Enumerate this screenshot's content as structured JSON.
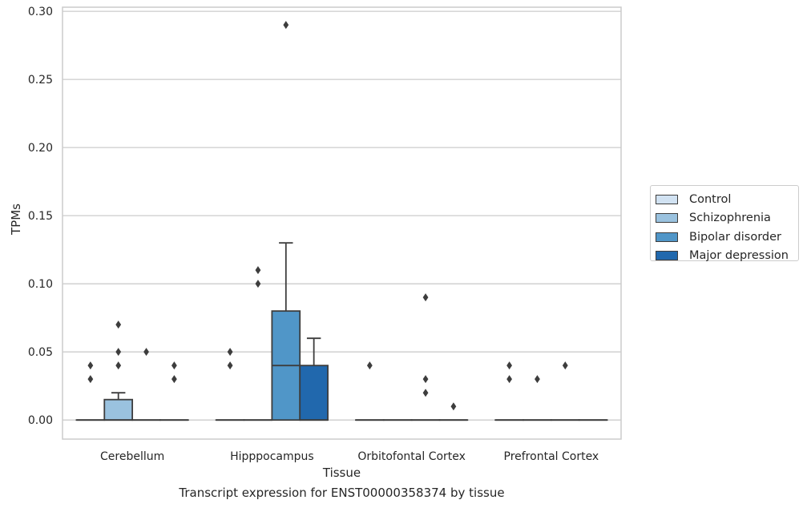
{
  "chart_data": {
    "type": "box",
    "xlabel": "Tissue",
    "ylabel": "TPMs",
    "ylim": [
      -0.014,
      0.303
    ],
    "yticks": [
      0.0,
      0.05,
      0.1,
      0.15,
      0.2,
      0.25,
      0.3
    ],
    "ytick_labels": [
      "0.00",
      "0.05",
      "0.10",
      "0.15",
      "0.20",
      "0.25",
      "0.30"
    ],
    "grid": true,
    "legend_position": "right",
    "categories": [
      "Cerebellum",
      "Hipppocampus",
      "Orbitofontal Cortex",
      "Prefrontal Cortex"
    ],
    "series": [
      {
        "name": "Control",
        "color": "#d1e2f2",
        "boxes": [
          {
            "q1": 0,
            "median": 0,
            "q3": 0,
            "whislo": 0,
            "whishi": 0,
            "fliers": [
              0.03,
              0.04
            ]
          },
          {
            "q1": 0,
            "median": 0,
            "q3": 0,
            "whislo": 0,
            "whishi": 0,
            "fliers": [
              0.04,
              0.05
            ]
          },
          {
            "q1": 0,
            "median": 0,
            "q3": 0,
            "whislo": 0,
            "whishi": 0,
            "fliers": [
              0.04
            ]
          },
          {
            "q1": 0,
            "median": 0,
            "q3": 0,
            "whislo": 0,
            "whishi": 0,
            "fliers": [
              0.03,
              0.04
            ]
          }
        ]
      },
      {
        "name": "Schizophrenia",
        "color": "#9ac2df",
        "boxes": [
          {
            "q1": 0,
            "median": 0,
            "q3": 0.015,
            "whislo": 0,
            "whishi": 0.02,
            "fliers": [
              0.04,
              0.05,
              0.07
            ]
          },
          {
            "q1": 0,
            "median": 0,
            "q3": 0,
            "whislo": 0,
            "whishi": 0,
            "fliers": [
              0.1,
              0.11
            ]
          },
          {
            "q1": 0,
            "median": 0,
            "q3": 0,
            "whislo": 0,
            "whishi": 0,
            "fliers": []
          },
          {
            "q1": 0,
            "median": 0,
            "q3": 0,
            "whislo": 0,
            "whishi": 0,
            "fliers": [
              0.03
            ]
          }
        ]
      },
      {
        "name": "Bipolar disorder",
        "color": "#5096c8",
        "boxes": [
          {
            "q1": 0,
            "median": 0,
            "q3": 0,
            "whislo": 0,
            "whishi": 0,
            "fliers": [
              0.05
            ]
          },
          {
            "q1": 0,
            "median": 0.04,
            "q3": 0.08,
            "whislo": 0,
            "whishi": 0.13,
            "fliers": [
              0.29
            ]
          },
          {
            "q1": 0,
            "median": 0,
            "q3": 0,
            "whislo": 0,
            "whishi": 0,
            "fliers": [
              0.02,
              0.03,
              0.09
            ]
          },
          {
            "q1": 0,
            "median": 0,
            "q3": 0,
            "whislo": 0,
            "whishi": 0,
            "fliers": [
              0.04
            ]
          }
        ]
      },
      {
        "name": "Major depression",
        "color": "#2168ad",
        "boxes": [
          {
            "q1": 0,
            "median": 0,
            "q3": 0,
            "whislo": 0,
            "whishi": 0,
            "fliers": [
              0.03,
              0.04
            ]
          },
          {
            "q1": 0,
            "median": 0,
            "q3": 0.04,
            "whislo": 0,
            "whishi": 0.06,
            "fliers": []
          },
          {
            "q1": 0,
            "median": 0,
            "q3": 0,
            "whislo": 0,
            "whishi": 0,
            "fliers": [
              0.01
            ]
          },
          {
            "q1": 0,
            "median": 0,
            "q3": 0,
            "whislo": 0,
            "whishi": 0,
            "fliers": []
          }
        ]
      }
    ],
    "caption": "Transcript expression for ENST00000358374 by tissue"
  }
}
